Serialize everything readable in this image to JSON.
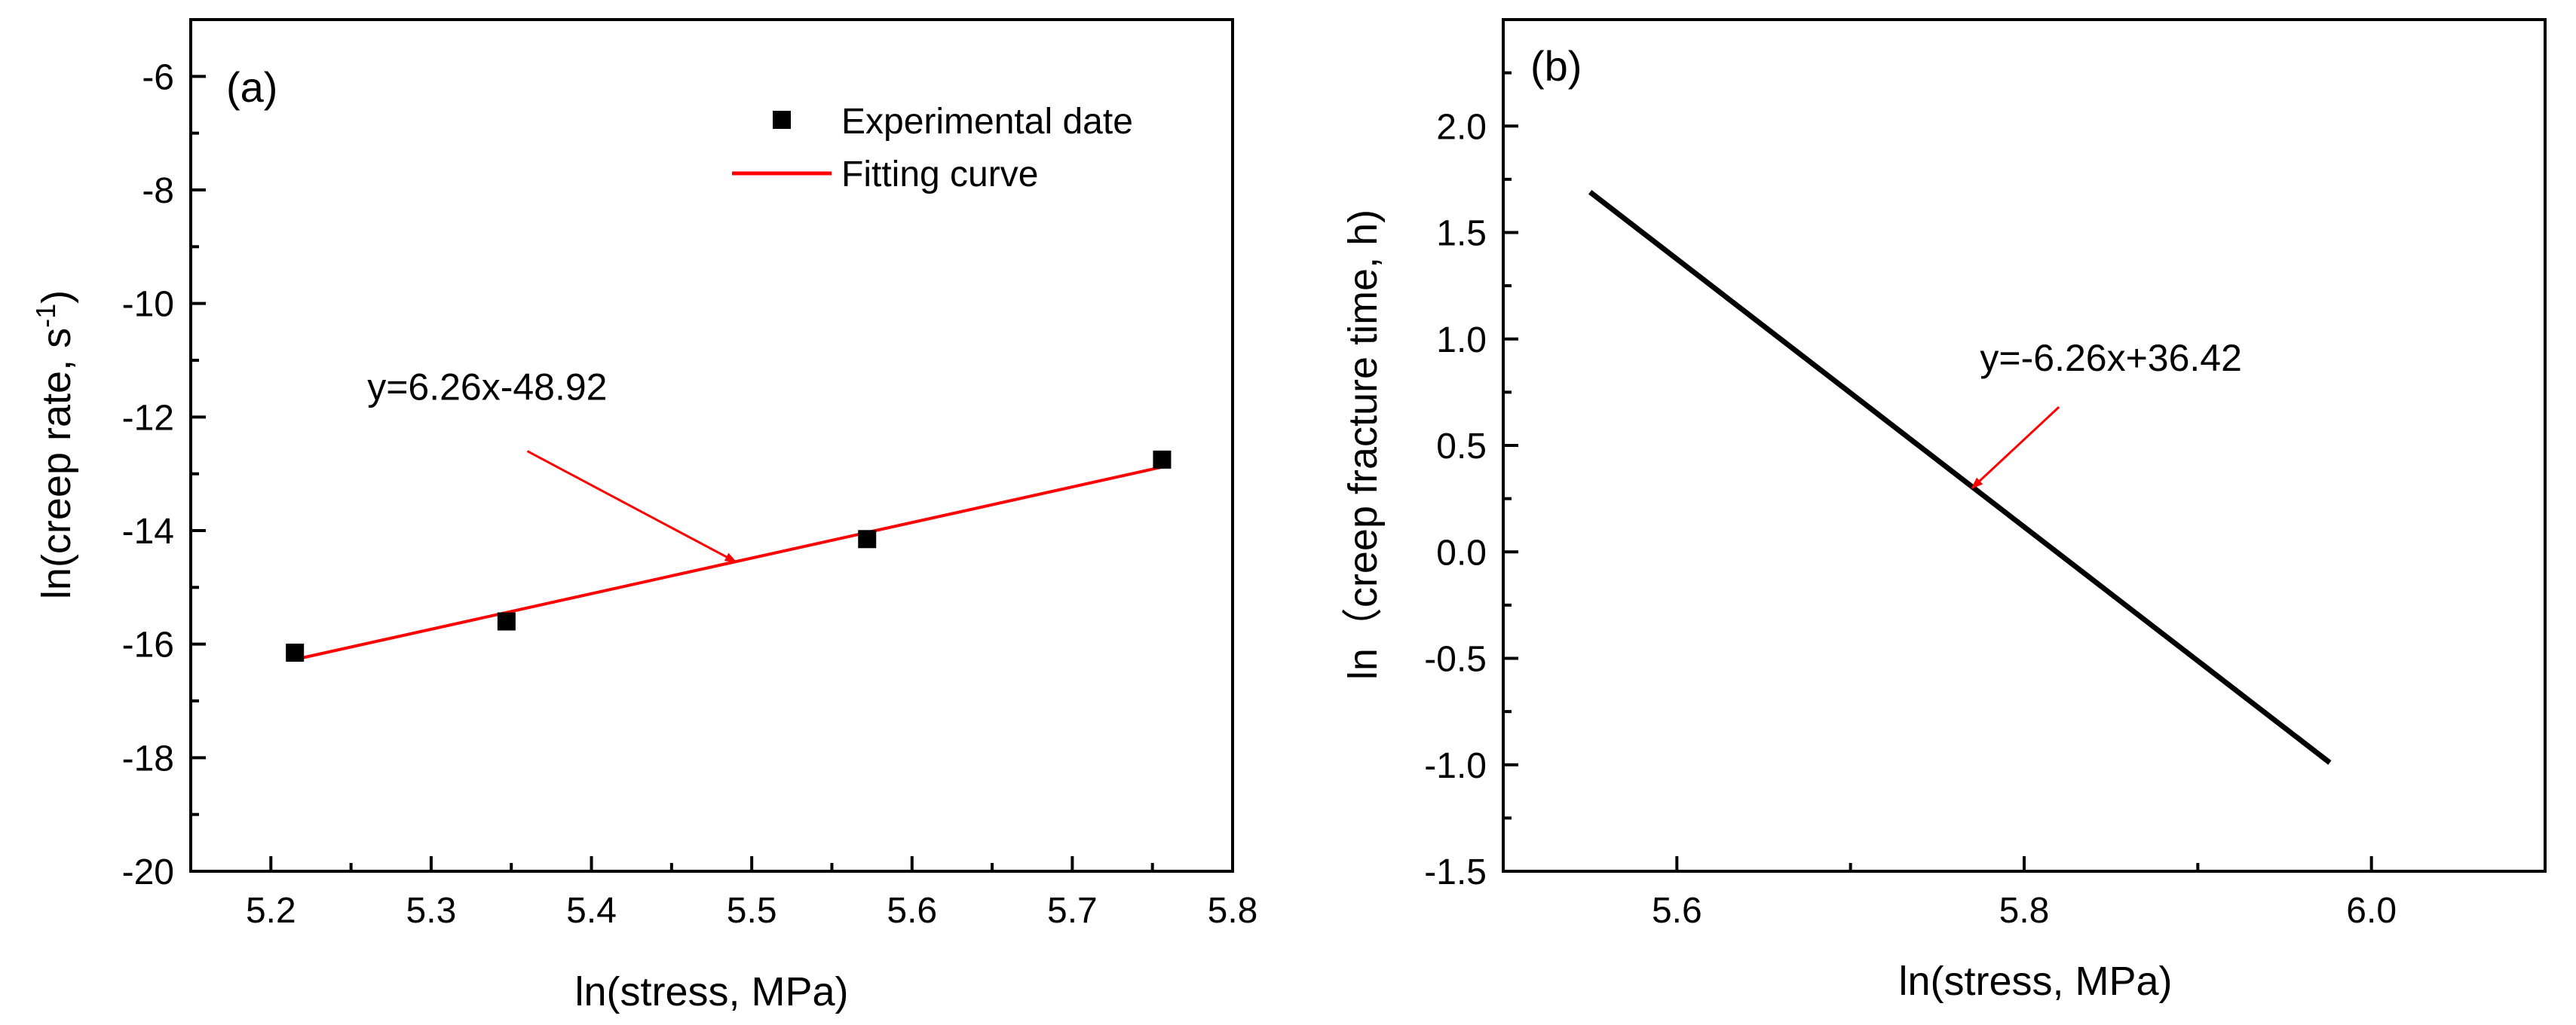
{
  "chart_data": [
    {
      "panel": "(a)",
      "type": "scatter",
      "xlabel": "ln(stress, MPa)",
      "ylabel": "ln(creep rate, s",
      "ylabel_superscript": "-1",
      "ylabel_close": ")",
      "xlim": [
        5.15,
        5.8
      ],
      "ylim": [
        -20,
        -5
      ],
      "xticks": [
        5.2,
        5.3,
        5.4,
        5.5,
        5.6,
        5.7,
        5.8
      ],
      "yticks": [
        -20,
        -18,
        -16,
        -14,
        -12,
        -10,
        -8,
        -6
      ],
      "legend_position": "top-right",
      "series": [
        {
          "name": "Experimental date",
          "kind": "scatter",
          "marker": "square",
          "color": "#000000",
          "x": [
            5.215,
            5.347,
            5.572,
            5.756
          ],
          "y": [
            -16.15,
            -15.6,
            -14.15,
            -12.75
          ]
        },
        {
          "name": "Fitting curve",
          "kind": "line",
          "color": "#ff0000",
          "x": [
            5.215,
            5.756
          ],
          "y": [
            -16.27,
            -12.88
          ]
        }
      ],
      "annotation": {
        "text": "y=6.26x-48.92",
        "text_x": 5.335,
        "text_y": -11.7,
        "arrow_from": [
          5.36,
          -12.6
        ],
        "arrow_to": [
          5.49,
          -14.55
        ],
        "arrow_color": "#ff0000"
      }
    },
    {
      "panel": "(b)",
      "type": "line",
      "xlabel": "ln(stress, MPa)",
      "ylabel": "ln（creep fracture time, h)",
      "xlim": [
        5.5,
        6.1
      ],
      "ylim": [
        -1.5,
        2.5
      ],
      "xticks": [
        5.6,
        5.8,
        6.0
      ],
      "xminor": [
        5.5,
        5.7,
        5.9,
        6.1
      ],
      "yticks": [
        -1.5,
        -1.0,
        -0.5,
        0.0,
        0.5,
        1.0,
        1.5,
        2.0
      ],
      "series": [
        {
          "kind": "line",
          "color": "#000000",
          "x": [
            5.55,
            5.976
          ],
          "y": [
            1.69,
            -0.99
          ]
        }
      ],
      "annotation": {
        "text": "y=-6.26x+36.42",
        "text_x": 5.85,
        "text_y": 0.85,
        "arrow_from": [
          5.82,
          0.68
        ],
        "arrow_to": [
          5.77,
          0.3
        ],
        "arrow_color": "#ff0000"
      }
    }
  ]
}
